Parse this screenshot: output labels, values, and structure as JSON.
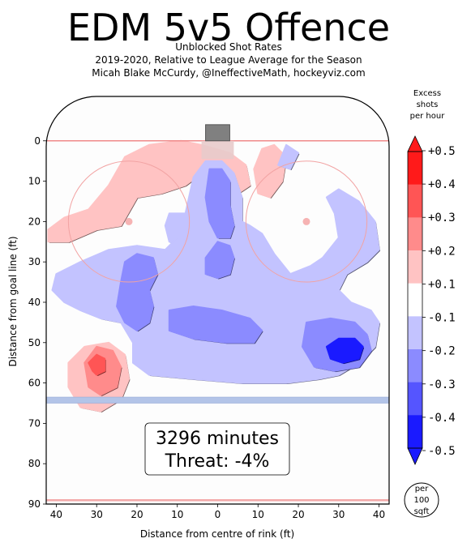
{
  "chart_data": {
    "type": "heatmap",
    "title": "EDM 5v5 Offence",
    "subtitle_lines": [
      "Unblocked Shot Rates",
      "2019-2020, Relative to League Average for the Season",
      "Micah Blake McCurdy, @IneffectiveMath, hockeyviz.com"
    ],
    "xlabel": "Distance from centre of rink (ft)",
    "ylabel": "Distance from goal line (ft)",
    "xlim": [
      -42.5,
      42.5
    ],
    "ylim": [
      -11,
      90
    ],
    "x_ticks": [
      40,
      30,
      20,
      10,
      0,
      10,
      20,
      30,
      40
    ],
    "y_ticks": [
      0,
      10,
      20,
      30,
      40,
      50,
      60,
      70,
      80,
      90
    ],
    "info_box": {
      "minutes": "3296 minutes",
      "threat": "Threat: -4%"
    },
    "colorbar": {
      "title_lines": [
        "Excess",
        "shots",
        "per hour"
      ],
      "ticks": [
        "+0.5",
        "+0.4",
        "+0.3",
        "+0.2",
        "+0.1",
        "-0.1",
        "-0.2",
        "-0.3",
        "-0.4",
        "-0.5"
      ],
      "levels": [
        {
          "range": [
            0.4,
            0.5
          ],
          "color": "#ff1a1a"
        },
        {
          "range": [
            0.3,
            0.4
          ],
          "color": "#ff5555"
        },
        {
          "range": [
            0.2,
            0.3
          ],
          "color": "#ff8b8b"
        },
        {
          "range": [
            0.1,
            0.2
          ],
          "color": "#ffc3c3"
        },
        {
          "range": [
            -0.1,
            0.1
          ],
          "color": "#ffffff"
        },
        {
          "range": [
            -0.2,
            -0.1
          ],
          "color": "#c3c3ff"
        },
        {
          "range": [
            -0.3,
            -0.2
          ],
          "color": "#8b8bff"
        },
        {
          "range": [
            -0.4,
            -0.3
          ],
          "color": "#5555ff"
        },
        {
          "range": [
            -0.5,
            -0.4
          ],
          "color": "#1a1aff"
        }
      ],
      "unit_lines": [
        "per",
        "100",
        "sqft"
      ]
    },
    "regions": [
      {
        "level": 0.15,
        "points": [
          [
            -42,
            22
          ],
          [
            -38,
            19
          ],
          [
            -32,
            17
          ],
          [
            -27,
            11
          ],
          [
            -23,
            4
          ],
          [
            -17,
            1
          ],
          [
            -9,
            0
          ],
          [
            -4,
            1
          ],
          [
            3,
            3
          ],
          [
            7,
            6
          ],
          [
            8,
            11
          ],
          [
            5,
            13
          ],
          [
            0,
            10
          ],
          [
            -4,
            8
          ],
          [
            -8,
            11
          ],
          [
            -14,
            13
          ],
          [
            -20,
            14
          ],
          [
            -24,
            21
          ],
          [
            -30,
            22
          ],
          [
            -37,
            25
          ],
          [
            -42,
            25
          ]
        ]
      },
      {
        "level": 0.15,
        "points": [
          [
            11,
            2
          ],
          [
            14,
            1
          ],
          [
            17,
            4
          ],
          [
            16,
            10
          ],
          [
            13,
            14
          ],
          [
            10,
            13
          ],
          [
            9,
            7
          ]
        ]
      },
      {
        "level": 0.15,
        "points": [
          [
            -37,
            55
          ],
          [
            -33,
            51
          ],
          [
            -27,
            50
          ],
          [
            -23,
            53
          ],
          [
            -22,
            59
          ],
          [
            -24,
            64
          ],
          [
            -29,
            67
          ],
          [
            -34,
            66
          ],
          [
            -37,
            61
          ]
        ]
      },
      {
        "level": 0.25,
        "points": [
          [
            -33,
            55
          ],
          [
            -30,
            51
          ],
          [
            -26,
            52
          ],
          [
            -24,
            56
          ],
          [
            -25,
            61
          ],
          [
            -29,
            63
          ],
          [
            -32,
            61
          ]
        ]
      },
      {
        "level": 0.35,
        "points": [
          [
            -32,
            55
          ],
          [
            -30,
            53
          ],
          [
            -28,
            54
          ],
          [
            -28,
            57
          ],
          [
            -30,
            58
          ],
          [
            -31,
            57
          ]
        ]
      },
      {
        "level": -0.15,
        "points": [
          [
            17,
            1
          ],
          [
            20,
            3
          ],
          [
            18,
            7
          ],
          [
            15,
            6
          ]
        ]
      },
      {
        "level": -0.15,
        "points": [
          [
            -12,
            18
          ],
          [
            -8,
            18
          ],
          [
            -6,
            22
          ],
          [
            -9,
            26
          ],
          [
            -12,
            25
          ],
          [
            -13,
            21
          ]
        ]
      },
      {
        "level": -0.15,
        "points": [
          [
            -40,
            33
          ],
          [
            -34,
            30
          ],
          [
            -27,
            27
          ],
          [
            -20,
            26
          ],
          [
            -13,
            27
          ],
          [
            -10,
            24
          ],
          [
            -8,
            18
          ],
          [
            -6,
            9
          ],
          [
            -3,
            5
          ],
          [
            1,
            5
          ],
          [
            4,
            8
          ],
          [
            6,
            14
          ],
          [
            6,
            20
          ],
          [
            8,
            21
          ],
          [
            11,
            23
          ],
          [
            14,
            28
          ],
          [
            18,
            33
          ],
          [
            23,
            31
          ],
          [
            26,
            29
          ],
          [
            30,
            24
          ],
          [
            29,
            18
          ],
          [
            27,
            14
          ],
          [
            30,
            12
          ],
          [
            35,
            15
          ],
          [
            39,
            20
          ],
          [
            40,
            27
          ],
          [
            37,
            30
          ],
          [
            32,
            33
          ],
          [
            30,
            37
          ],
          [
            33,
            40
          ],
          [
            38,
            42
          ],
          [
            40,
            45
          ],
          [
            39,
            51
          ],
          [
            35,
            55
          ],
          [
            30,
            58
          ],
          [
            25,
            59
          ],
          [
            17,
            60
          ],
          [
            6,
            60
          ],
          [
            -6,
            59
          ],
          [
            -17,
            58
          ],
          [
            -21,
            55
          ],
          [
            -21,
            50
          ],
          [
            -24,
            45
          ],
          [
            -29,
            44
          ],
          [
            -34,
            42
          ],
          [
            -38,
            40
          ],
          [
            -41,
            37
          ]
        ]
      },
      {
        "level": -0.25,
        "points": [
          [
            -23,
            30
          ],
          [
            -20,
            28
          ],
          [
            -16,
            29
          ],
          [
            -15,
            33
          ],
          [
            -17,
            37
          ],
          [
            -16,
            41
          ],
          [
            -17,
            45
          ],
          [
            -20,
            47
          ],
          [
            -23,
            45
          ],
          [
            -25,
            41
          ],
          [
            -24,
            35
          ]
        ]
      },
      {
        "level": -0.25,
        "points": [
          [
            -2,
            7
          ],
          [
            1,
            7
          ],
          [
            3,
            10
          ],
          [
            3,
            16
          ],
          [
            4,
            21
          ],
          [
            3,
            24
          ],
          [
            0,
            24
          ],
          [
            -2,
            20
          ],
          [
            -3,
            14
          ]
        ]
      },
      {
        "level": -0.25,
        "points": [
          [
            0,
            25
          ],
          [
            3,
            26
          ],
          [
            4,
            29
          ],
          [
            3,
            33
          ],
          [
            0,
            34
          ],
          [
            -3,
            33
          ],
          [
            -3,
            29
          ]
        ]
      },
      {
        "level": -0.25,
        "points": [
          [
            -12,
            42
          ],
          [
            -6,
            41
          ],
          [
            1,
            42
          ],
          [
            8,
            44
          ],
          [
            11,
            47
          ],
          [
            9,
            50
          ],
          [
            2,
            50
          ],
          [
            -6,
            49
          ],
          [
            -12,
            47
          ]
        ]
      },
      {
        "level": -0.25,
        "points": [
          [
            22,
            45
          ],
          [
            28,
            44
          ],
          [
            34,
            45
          ],
          [
            37,
            48
          ],
          [
            38,
            52
          ],
          [
            35,
            56
          ],
          [
            29,
            57
          ],
          [
            24,
            56
          ],
          [
            21,
            51
          ]
        ]
      },
      {
        "level": -0.45,
        "points": [
          [
            27,
            51
          ],
          [
            30,
            49
          ],
          [
            34,
            49
          ],
          [
            36,
            51
          ],
          [
            35,
            54
          ],
          [
            31,
            55
          ],
          [
            28,
            54
          ]
        ]
      }
    ]
  }
}
